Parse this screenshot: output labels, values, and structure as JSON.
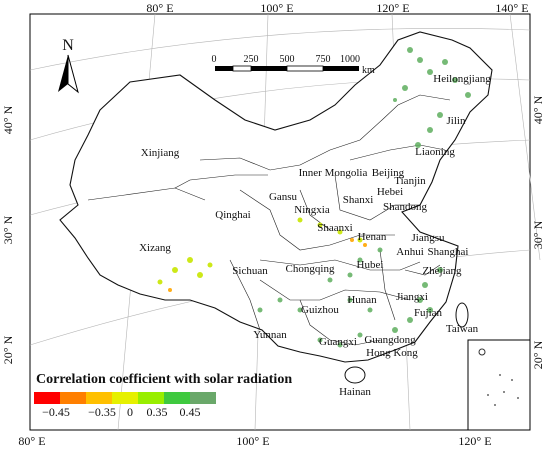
{
  "north_arrow": {
    "letter": "N"
  },
  "scalebar": {
    "ticks": [
      "0",
      "250",
      "500",
      "750",
      "1000"
    ],
    "unit": "km"
  },
  "coordinates": {
    "top": [
      "80° E",
      "100° E",
      "120° E",
      "140° E"
    ],
    "bottom": [
      "80° E",
      "100° E",
      "120° E"
    ],
    "left": [
      "40° N",
      "30° N",
      "20° N"
    ],
    "right": [
      "40° N",
      "30° N",
      "20° N"
    ]
  },
  "provinces": {
    "xinjiang": "Xinjiang",
    "xizang": "Xizang",
    "qinghai": "Qinghai",
    "inner_mongolia": "Inner Mongolia",
    "gansu": "Gansu",
    "ningxia": "Ningxia",
    "shaanxi": "Shaanxi",
    "shanxi": "Shanxi",
    "beijing": "Beijing",
    "hebei": "Hebei",
    "tianjin": "Tianjin",
    "liaoning": "Liaoning",
    "jilin": "Jilin",
    "heilongjiang": "Heilongjiang",
    "shandong": "Shandong",
    "henan": "Henan",
    "jiangsu": "Jiangsu",
    "anhui": "Anhui",
    "shanghai": "Shanghai",
    "hubei": "Hubei",
    "zhejiang": "Zhejiang",
    "sichuan": "Sichuan",
    "chongqing": "Chongqing",
    "guizhou": "Guizhou",
    "hunan": "Hunan",
    "jiangxi": "Jiangxi",
    "fujian": "Fujian",
    "taiwan": "Taiwan",
    "yunnan": "Yunnan",
    "guangxi": "Guangxi",
    "guangdong": "Guangdong",
    "hong_kong": "Hong Kong",
    "hainan": "Hainan"
  },
  "legend": {
    "title": "Correlation coefficient with solar radiation",
    "colors": [
      "#ff0000",
      "#ff7f00",
      "#ffc000",
      "#e6f000",
      "#99ee00",
      "#3fc93f",
      "#6aa86a"
    ],
    "labels": [
      "−0.45",
      "−0.35",
      "0",
      "0.35",
      "0.45"
    ]
  }
}
